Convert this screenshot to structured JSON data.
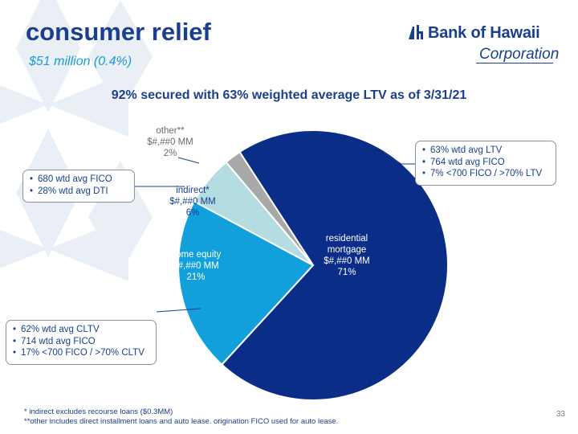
{
  "slide": {
    "title": "consumer relief",
    "subtitle": "$51 million (0.4%)",
    "heading": "92% secured with 63% weighted average LTV as of 3/31/21",
    "page_number": "33"
  },
  "logo": {
    "name": "Bank of Hawaii",
    "corporation": "Corporation"
  },
  "colors": {
    "title": "#1a3f8c",
    "subtitle": "#1a9ad6",
    "residential": "#0a2d88",
    "home_equity": "#12a0dc",
    "indirect": "#b4dde2",
    "other": "#a8a8a8"
  },
  "chart_data": {
    "type": "pie",
    "slices": [
      {
        "key": "residential",
        "label_lines": [
          "residential",
          "mortgage",
          "$#,##0 MM",
          "71%"
        ],
        "value": 71,
        "color": "#0a2d88",
        "text_color": "#ffffff"
      },
      {
        "key": "home_equity",
        "label_lines": [
          "home equity",
          "$#,##0 MM",
          "21%"
        ],
        "value": 21,
        "color": "#12a0dc",
        "text_color": "#ffffff"
      },
      {
        "key": "indirect",
        "label_lines": [
          "indirect*",
          "$#,##0 MM",
          "6%"
        ],
        "value": 6,
        "color": "#b4dde2",
        "text_color": "#1a3f8c"
      },
      {
        "key": "other",
        "label_lines": [
          "other**",
          "$#,##0 MM",
          "2%"
        ],
        "value": 2,
        "color": "#a8a8a8",
        "text_color": "#6a6a6a"
      }
    ]
  },
  "callouts": {
    "residential": [
      "63% wtd avg LTV",
      "764 wtd avg FICO",
      "7% <700 FICO / >70% LTV"
    ],
    "indirect": [
      "680 wtd avg FICO",
      "28% wtd avg DTI"
    ],
    "home_equity": [
      "62% wtd avg CLTV",
      "714 wtd avg FICO",
      "17% <700 FICO / >70% CLTV"
    ]
  },
  "footnotes": {
    "line1": "* indirect excludes recourse loans ($0.3MM)",
    "line2": "**other includes direct installment loans and auto lease.  origination FICO used for auto lease."
  }
}
